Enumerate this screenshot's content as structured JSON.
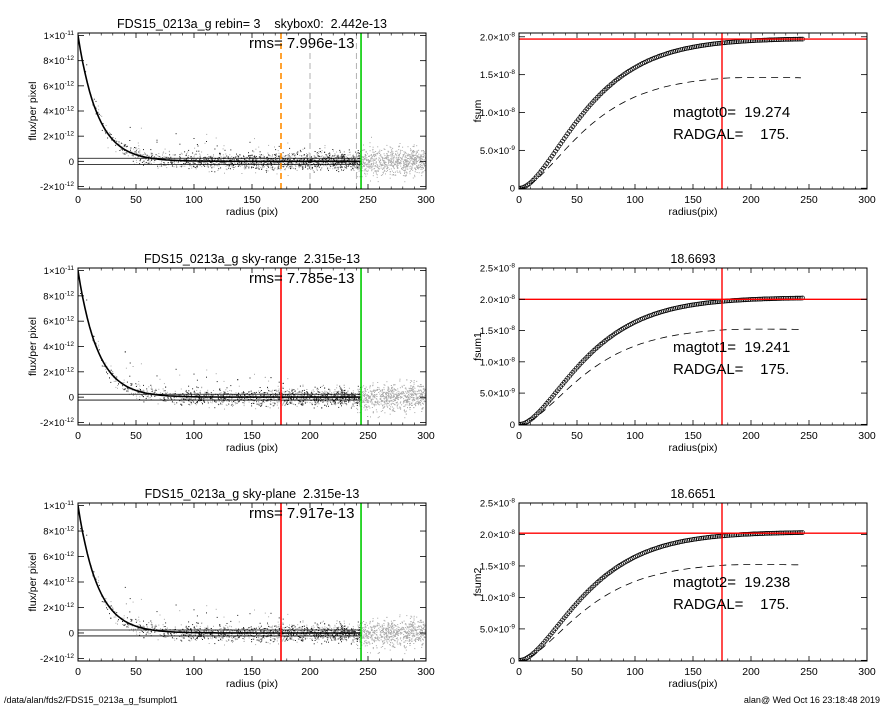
{
  "footer": {
    "path": "/data/alan/fds2/FDS15_0213a_g_fsumplot1",
    "stamp": "alan@  Wed Oct 16 23:18:48 2019"
  },
  "chart_data": [
    {
      "type": "scatter",
      "id": "profile-1",
      "title": "FDS15_0213a_g rebin= 3    skybox0:  2.442e-13",
      "annotations": [
        "rms= 7.996e-13"
      ],
      "xlabel": "radius (pix)",
      "ylabel": "flux/per pixel",
      "xlim": [
        0,
        300
      ],
      "ylim": [
        -2.2e-12,
        1.02e-11
      ],
      "xticks": [
        0,
        50,
        100,
        150,
        200,
        250,
        300
      ],
      "xtick_labels": [
        "0",
        "50",
        "100",
        "150",
        "200",
        "250",
        "300"
      ],
      "ytick_values": [
        -2e-12,
        0,
        2e-12,
        4e-12,
        6e-12,
        8e-12,
        1e-11
      ],
      "ytick_mantissa": [
        "-2×10",
        "0",
        "2×10",
        "4×10",
        "6×10",
        "8×10",
        "1×10"
      ],
      "ytick_exp": [
        "-12",
        "",
        "-12",
        "-12",
        "-12",
        "-12",
        "-11"
      ],
      "profile_peak": 1e-11,
      "profile_scale_pix": 17,
      "zero_band": [
        2.442e-13,
        -2.442e-13
      ],
      "vlines": [
        {
          "x": 175,
          "color": "#ff8c00",
          "style": "dashed"
        },
        {
          "x": 200,
          "color": "#aaaaaa",
          "style": "dashed"
        },
        {
          "x": 240,
          "color": "#aaaaaa",
          "style": "dashed"
        },
        {
          "x": 244,
          "color": "#00cc00",
          "style": "solid"
        }
      ]
    },
    {
      "type": "line",
      "id": "fsum-1",
      "title": "",
      "annotations": [
        "magtot0=  19.274",
        "RADGAL=    175."
      ],
      "xlabel": "radius(pix)",
      "ylabel": "fsum",
      "xlim": [
        0,
        300
      ],
      "ylim": [
        -1e-10,
        2.05e-08
      ],
      "xticks": [
        0,
        50,
        100,
        150,
        200,
        250,
        300
      ],
      "xtick_labels": [
        "0",
        "50",
        "100",
        "150",
        "200",
        "250",
        "300"
      ],
      "ytick_values": [
        0,
        5e-09,
        1e-08,
        1.5e-08,
        2e-08
      ],
      "ytick_mantissa": [
        "0",
        "5.0×10",
        "1.0×10",
        "1.5×10",
        "2.0×10"
      ],
      "ytick_exp": [
        "",
        "-9",
        "-8",
        "-8",
        "-8"
      ],
      "asymptote": 1.97e-08,
      "dashed_asymptote": 1.49e-08,
      "curve_scale_pix": 33,
      "max_radius": 245,
      "hline": 1.97e-08,
      "vline": 175
    },
    {
      "type": "scatter",
      "id": "profile-2",
      "title": "FDS15_0213a_g sky-range  2.315e-13",
      "annotations": [
        "rms= 7.785e-13"
      ],
      "xlabel": "radius (pix)",
      "ylabel": "flux/per pixel",
      "xlim": [
        0,
        300
      ],
      "ylim": [
        -2.2e-12,
        1.02e-11
      ],
      "xticks": [
        0,
        50,
        100,
        150,
        200,
        250,
        300
      ],
      "xtick_labels": [
        "0",
        "50",
        "100",
        "150",
        "200",
        "250",
        "300"
      ],
      "ytick_values": [
        -2e-12,
        0,
        2e-12,
        4e-12,
        6e-12,
        8e-12,
        1e-11
      ],
      "ytick_mantissa": [
        "-2×10",
        "0",
        "2×10",
        "4×10",
        "6×10",
        "8×10",
        "1×10"
      ],
      "ytick_exp": [
        "-12",
        "",
        "-12",
        "-12",
        "-12",
        "-12",
        "-11"
      ],
      "profile_peak": 1e-11,
      "profile_scale_pix": 17,
      "zero_band": [
        2.315e-13,
        -2.315e-13
      ],
      "vlines": [
        {
          "x": 175,
          "color": "#ff0000",
          "style": "solid"
        },
        {
          "x": 244,
          "color": "#00cc00",
          "style": "solid"
        }
      ]
    },
    {
      "type": "line",
      "id": "fsum-2",
      "title": "18.6693",
      "annotations": [
        "magtot1=  19.241",
        "RADGAL=    175."
      ],
      "xlabel": "radius(pix)",
      "ylabel": "fsum1",
      "xlim": [
        0,
        300
      ],
      "ylim": [
        -1e-10,
        2.5e-08
      ],
      "xticks": [
        0,
        50,
        100,
        150,
        200,
        250,
        300
      ],
      "xtick_labels": [
        "0",
        "50",
        "100",
        "150",
        "200",
        "250",
        "300"
      ],
      "ytick_values": [
        0,
        5e-09,
        1e-08,
        1.5e-08,
        2e-08,
        2.5e-08
      ],
      "ytick_mantissa": [
        "0",
        "5.0×10",
        "1.0×10",
        "1.5×10",
        "2.0×10",
        "2.5×10"
      ],
      "ytick_exp": [
        "",
        "-9",
        "-8",
        "-8",
        "-8",
        "-8"
      ],
      "asymptote": 2.02e-08,
      "dashed_asymptote": 1.55e-08,
      "curve_scale_pix": 33,
      "max_radius": 245,
      "hline": 2e-08,
      "vline": 175
    },
    {
      "type": "scatter",
      "id": "profile-3",
      "title": "FDS15_0213a_g sky-plane  2.315e-13",
      "annotations": [
        "rms= 7.917e-13"
      ],
      "xlabel": "radius (pix)",
      "ylabel": "flux/per pixel",
      "xlim": [
        0,
        300
      ],
      "ylim": [
        -2.2e-12,
        1.02e-11
      ],
      "xticks": [
        0,
        50,
        100,
        150,
        200,
        250,
        300
      ],
      "xtick_labels": [
        "0",
        "50",
        "100",
        "150",
        "200",
        "250",
        "300"
      ],
      "ytick_values": [
        -2e-12,
        0,
        2e-12,
        4e-12,
        6e-12,
        8e-12,
        1e-11
      ],
      "ytick_mantissa": [
        "-2×10",
        "0",
        "2×10",
        "4×10",
        "6×10",
        "8×10",
        "1×10"
      ],
      "ytick_exp": [
        "-12",
        "",
        "-12",
        "-12",
        "-12",
        "-12",
        "-11"
      ],
      "profile_peak": 1e-11,
      "profile_scale_pix": 17,
      "zero_band": [
        2.315e-13,
        -2.315e-13
      ],
      "vlines": [
        {
          "x": 175,
          "color": "#ff0000",
          "style": "solid"
        },
        {
          "x": 244,
          "color": "#00cc00",
          "style": "solid"
        }
      ]
    },
    {
      "type": "line",
      "id": "fsum-3",
      "title": "18.6651",
      "annotations": [
        "magtot2=  19.238",
        "RADGAL=    175."
      ],
      "xlabel": "radius(pix)",
      "ylabel": "fsum2",
      "xlim": [
        0,
        300
      ],
      "ylim": [
        -1e-10,
        2.5e-08
      ],
      "xticks": [
        0,
        50,
        100,
        150,
        200,
        250,
        300
      ],
      "xtick_labels": [
        "0",
        "50",
        "100",
        "150",
        "200",
        "250",
        "300"
      ],
      "ytick_values": [
        0,
        5e-09,
        1e-08,
        1.5e-08,
        2e-08,
        2.5e-08
      ],
      "ytick_mantissa": [
        "0",
        "5.0×10",
        "1.0×10",
        "1.5×10",
        "2.0×10",
        "2.5×10"
      ],
      "ytick_exp": [
        "",
        "-9",
        "-8",
        "-8",
        "-8",
        "-8"
      ],
      "asymptote": 2.03e-08,
      "dashed_asymptote": 1.55e-08,
      "curve_scale_pix": 33,
      "max_radius": 245,
      "hline": 2.02e-08,
      "vline": 175
    }
  ]
}
